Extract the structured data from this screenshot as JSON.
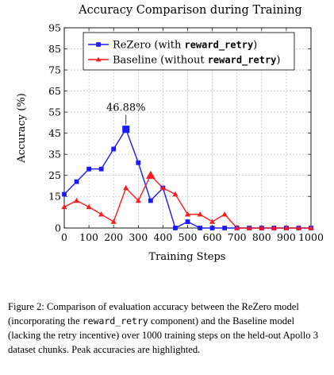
{
  "chart_data": {
    "type": "line",
    "title": "Accuracy Comparison during Training",
    "xlabel": "Training Steps",
    "ylabel": "Accuracy (%)",
    "xlim": [
      0,
      1000
    ],
    "ylim": [
      0,
      95
    ],
    "x_ticks": [
      0,
      100,
      200,
      300,
      400,
      500,
      600,
      700,
      800,
      900,
      1000
    ],
    "y_ticks": [
      0,
      15,
      25,
      35,
      45,
      55,
      65,
      75,
      85,
      95
    ],
    "grid": true,
    "legend_position": "top",
    "series": [
      {
        "name_parts": [
          "ReZero (with ",
          "reward_retry",
          ")"
        ],
        "color": "#1a1aff",
        "marker": "square",
        "x": [
          0,
          50,
          100,
          150,
          200,
          250,
          300,
          350,
          400,
          450,
          500,
          550,
          600,
          650,
          700,
          750,
          800,
          850,
          900,
          950,
          1000
        ],
        "y": [
          16,
          22,
          28,
          28,
          37.5,
          46.88,
          31,
          13,
          19,
          0,
          3,
          0,
          0,
          0,
          0,
          0,
          0,
          0,
          0,
          0,
          0
        ]
      },
      {
        "name_parts": [
          "Baseline (without ",
          "reward_retry",
          ")"
        ],
        "color": "#ff1a1a",
        "marker": "triangle",
        "x": [
          0,
          50,
          100,
          150,
          200,
          250,
          300,
          350,
          400,
          450,
          500,
          550,
          600,
          650,
          700,
          750,
          800,
          850,
          900,
          950,
          1000
        ],
        "y": [
          10,
          13,
          10,
          6.5,
          3,
          19,
          13,
          25,
          19,
          16,
          6.5,
          6.5,
          3,
          6.5,
          0,
          0,
          0,
          0,
          0,
          0,
          0
        ]
      }
    ],
    "annotations": [
      {
        "text": "46.88%",
        "x": 250,
        "y": 46.88
      }
    ]
  },
  "caption": {
    "parts": [
      "Figure 2: Comparison of evaluation accuracy between the ReZero model (incorporating the ",
      "reward_retry",
      " component) and the Baseline model (lacking the retry incentive) over 1000 training steps on the held-out Apollo 3 dataset chunks. Peak accuracies are highlighted."
    ]
  },
  "colors": {
    "rezero": "#1a1aff",
    "baseline": "#ff1a1a",
    "grid": "#b4b4b4"
  }
}
